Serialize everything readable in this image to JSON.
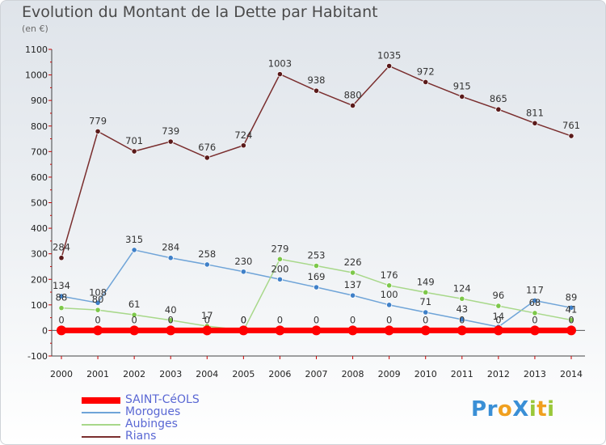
{
  "header": {
    "title": "Evolution du Montant de la Dette par Habitant",
    "unit": "(en €)"
  },
  "logo": {
    "text": "ProXiti",
    "letters": [
      {
        "ch": "P",
        "color": "#3a8fd6"
      },
      {
        "ch": "r",
        "color": "#3a8fd6"
      },
      {
        "ch": "o",
        "color": "#f0a020"
      },
      {
        "ch": "X",
        "color": "#3a8fd6"
      },
      {
        "ch": "i",
        "color": "#9ac83a"
      },
      {
        "ch": "t",
        "color": "#f0a020"
      },
      {
        "ch": "i",
        "color": "#9ac83a"
      }
    ]
  },
  "chart_data": {
    "type": "line",
    "title": "Evolution du Montant de la Dette par Habitant",
    "ylabel": "(en €)",
    "x": [
      2000,
      2001,
      2002,
      2003,
      2004,
      2005,
      2006,
      2007,
      2008,
      2009,
      2010,
      2011,
      2012,
      2013,
      2014
    ],
    "ylim": [
      -100,
      1100
    ],
    "yticks": [
      -100,
      0,
      100,
      200,
      300,
      400,
      500,
      600,
      700,
      800,
      900,
      1000,
      1100
    ],
    "grid": false,
    "legend_position": "bottom-left",
    "series": [
      {
        "name": "SAINT-CéOLS",
        "color": "#ff0000",
        "marker": "#ff0000",
        "width": 7,
        "values": [
          0,
          0,
          0,
          0,
          0,
          0,
          0,
          0,
          0,
          0,
          0,
          0,
          0,
          0,
          0
        ]
      },
      {
        "name": "Morogues",
        "color": "#6fa4d8",
        "marker": "#3f80c8",
        "width": 1.5,
        "values": [
          134,
          108,
          315,
          284,
          258,
          230,
          200,
          169,
          137,
          100,
          71,
          43,
          14,
          117,
          89
        ]
      },
      {
        "name": "Aubinges",
        "color": "#a8d88a",
        "marker": "#7dc84a",
        "width": 1.5,
        "values": [
          88,
          80,
          61,
          40,
          17,
          0,
          279,
          253,
          226,
          176,
          149,
          124,
          96,
          68,
          41
        ]
      },
      {
        "name": "Rians",
        "color": "#7a2e2e",
        "marker": "#5a1a1a",
        "width": 1.5,
        "values": [
          284,
          779,
          701,
          739,
          676,
          724,
          1003,
          938,
          880,
          1035,
          972,
          915,
          865,
          811,
          761
        ]
      }
    ]
  }
}
